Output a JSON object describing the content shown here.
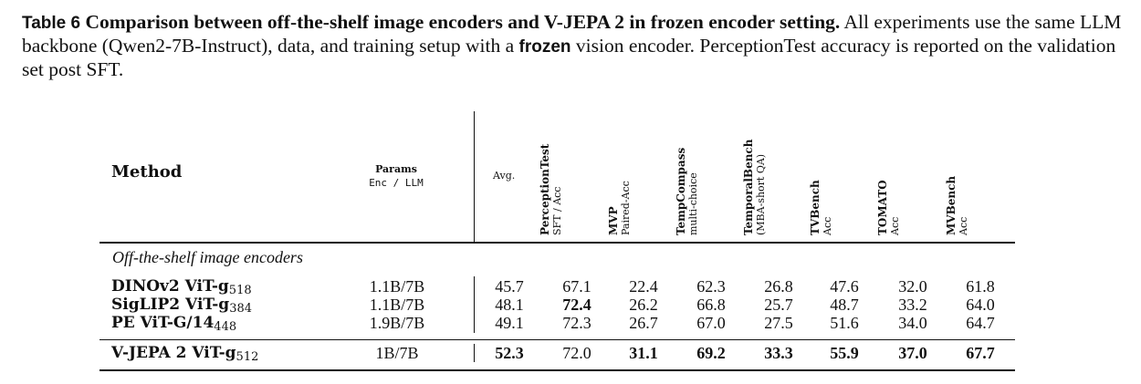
{
  "caption": {
    "label": "Table 6",
    "title": "Comparison between off-the-shelf image encoders and V-JEPA 2 in frozen encoder setting.",
    "text_before": "All experiments use the same LLM backbone (Qwen2-7B-Instruct), data, and training setup with a",
    "keyword": "frozen",
    "text_after": "vision encoder. PerceptionTest accuracy is reported on the validation set post SFT."
  },
  "header": {
    "method": "Method",
    "params_title": "Params",
    "params_sub": "Enc / LLM",
    "avg": "Avg.",
    "columns": [
      {
        "name": "PerceptionTest",
        "sub": "SFT / Acc"
      },
      {
        "name": "MVP",
        "sub": "Paired-Acc"
      },
      {
        "name": "TempCompass",
        "sub": "multi-choice"
      },
      {
        "name": "TemporalBench",
        "sub": "(MBA-short QA)"
      },
      {
        "name": "TVBench",
        "sub": "Acc"
      },
      {
        "name": "TOMATO",
        "sub": "Acc"
      },
      {
        "name": "MVBench",
        "sub": "Acc"
      }
    ]
  },
  "section_label": "Off-the-shelf image encoders",
  "rows": [
    {
      "method": "DINOv2 ViT-g",
      "res": "518",
      "params": "1.1B/7B",
      "values": [
        "45.7",
        "67.1",
        "22.4",
        "62.3",
        "26.8",
        "47.6",
        "32.0",
        "61.8"
      ],
      "bold": [
        false,
        false,
        false,
        false,
        false,
        false,
        false,
        false
      ]
    },
    {
      "method": "SigLIP2 ViT-g",
      "res": "384",
      "params": "1.1B/7B",
      "values": [
        "48.1",
        "72.4",
        "26.2",
        "66.8",
        "25.7",
        "48.7",
        "33.2",
        "64.0"
      ],
      "bold": [
        false,
        true,
        false,
        false,
        false,
        false,
        false,
        false
      ]
    },
    {
      "method": "PE ViT-G/14",
      "res": "448",
      "params": "1.9B/7B",
      "values": [
        "49.1",
        "72.3",
        "26.7",
        "67.0",
        "27.5",
        "51.6",
        "34.0",
        "64.7"
      ],
      "bold": [
        false,
        false,
        false,
        false,
        false,
        false,
        false,
        false
      ]
    },
    {
      "method": "V-JEPA 2 ViT-g",
      "res": "512",
      "params": "1B/7B",
      "values": [
        "52.3",
        "72.0",
        "31.1",
        "69.2",
        "33.3",
        "55.9",
        "37.0",
        "67.7"
      ],
      "bold": [
        true,
        false,
        true,
        true,
        true,
        true,
        true,
        true
      ]
    }
  ]
}
